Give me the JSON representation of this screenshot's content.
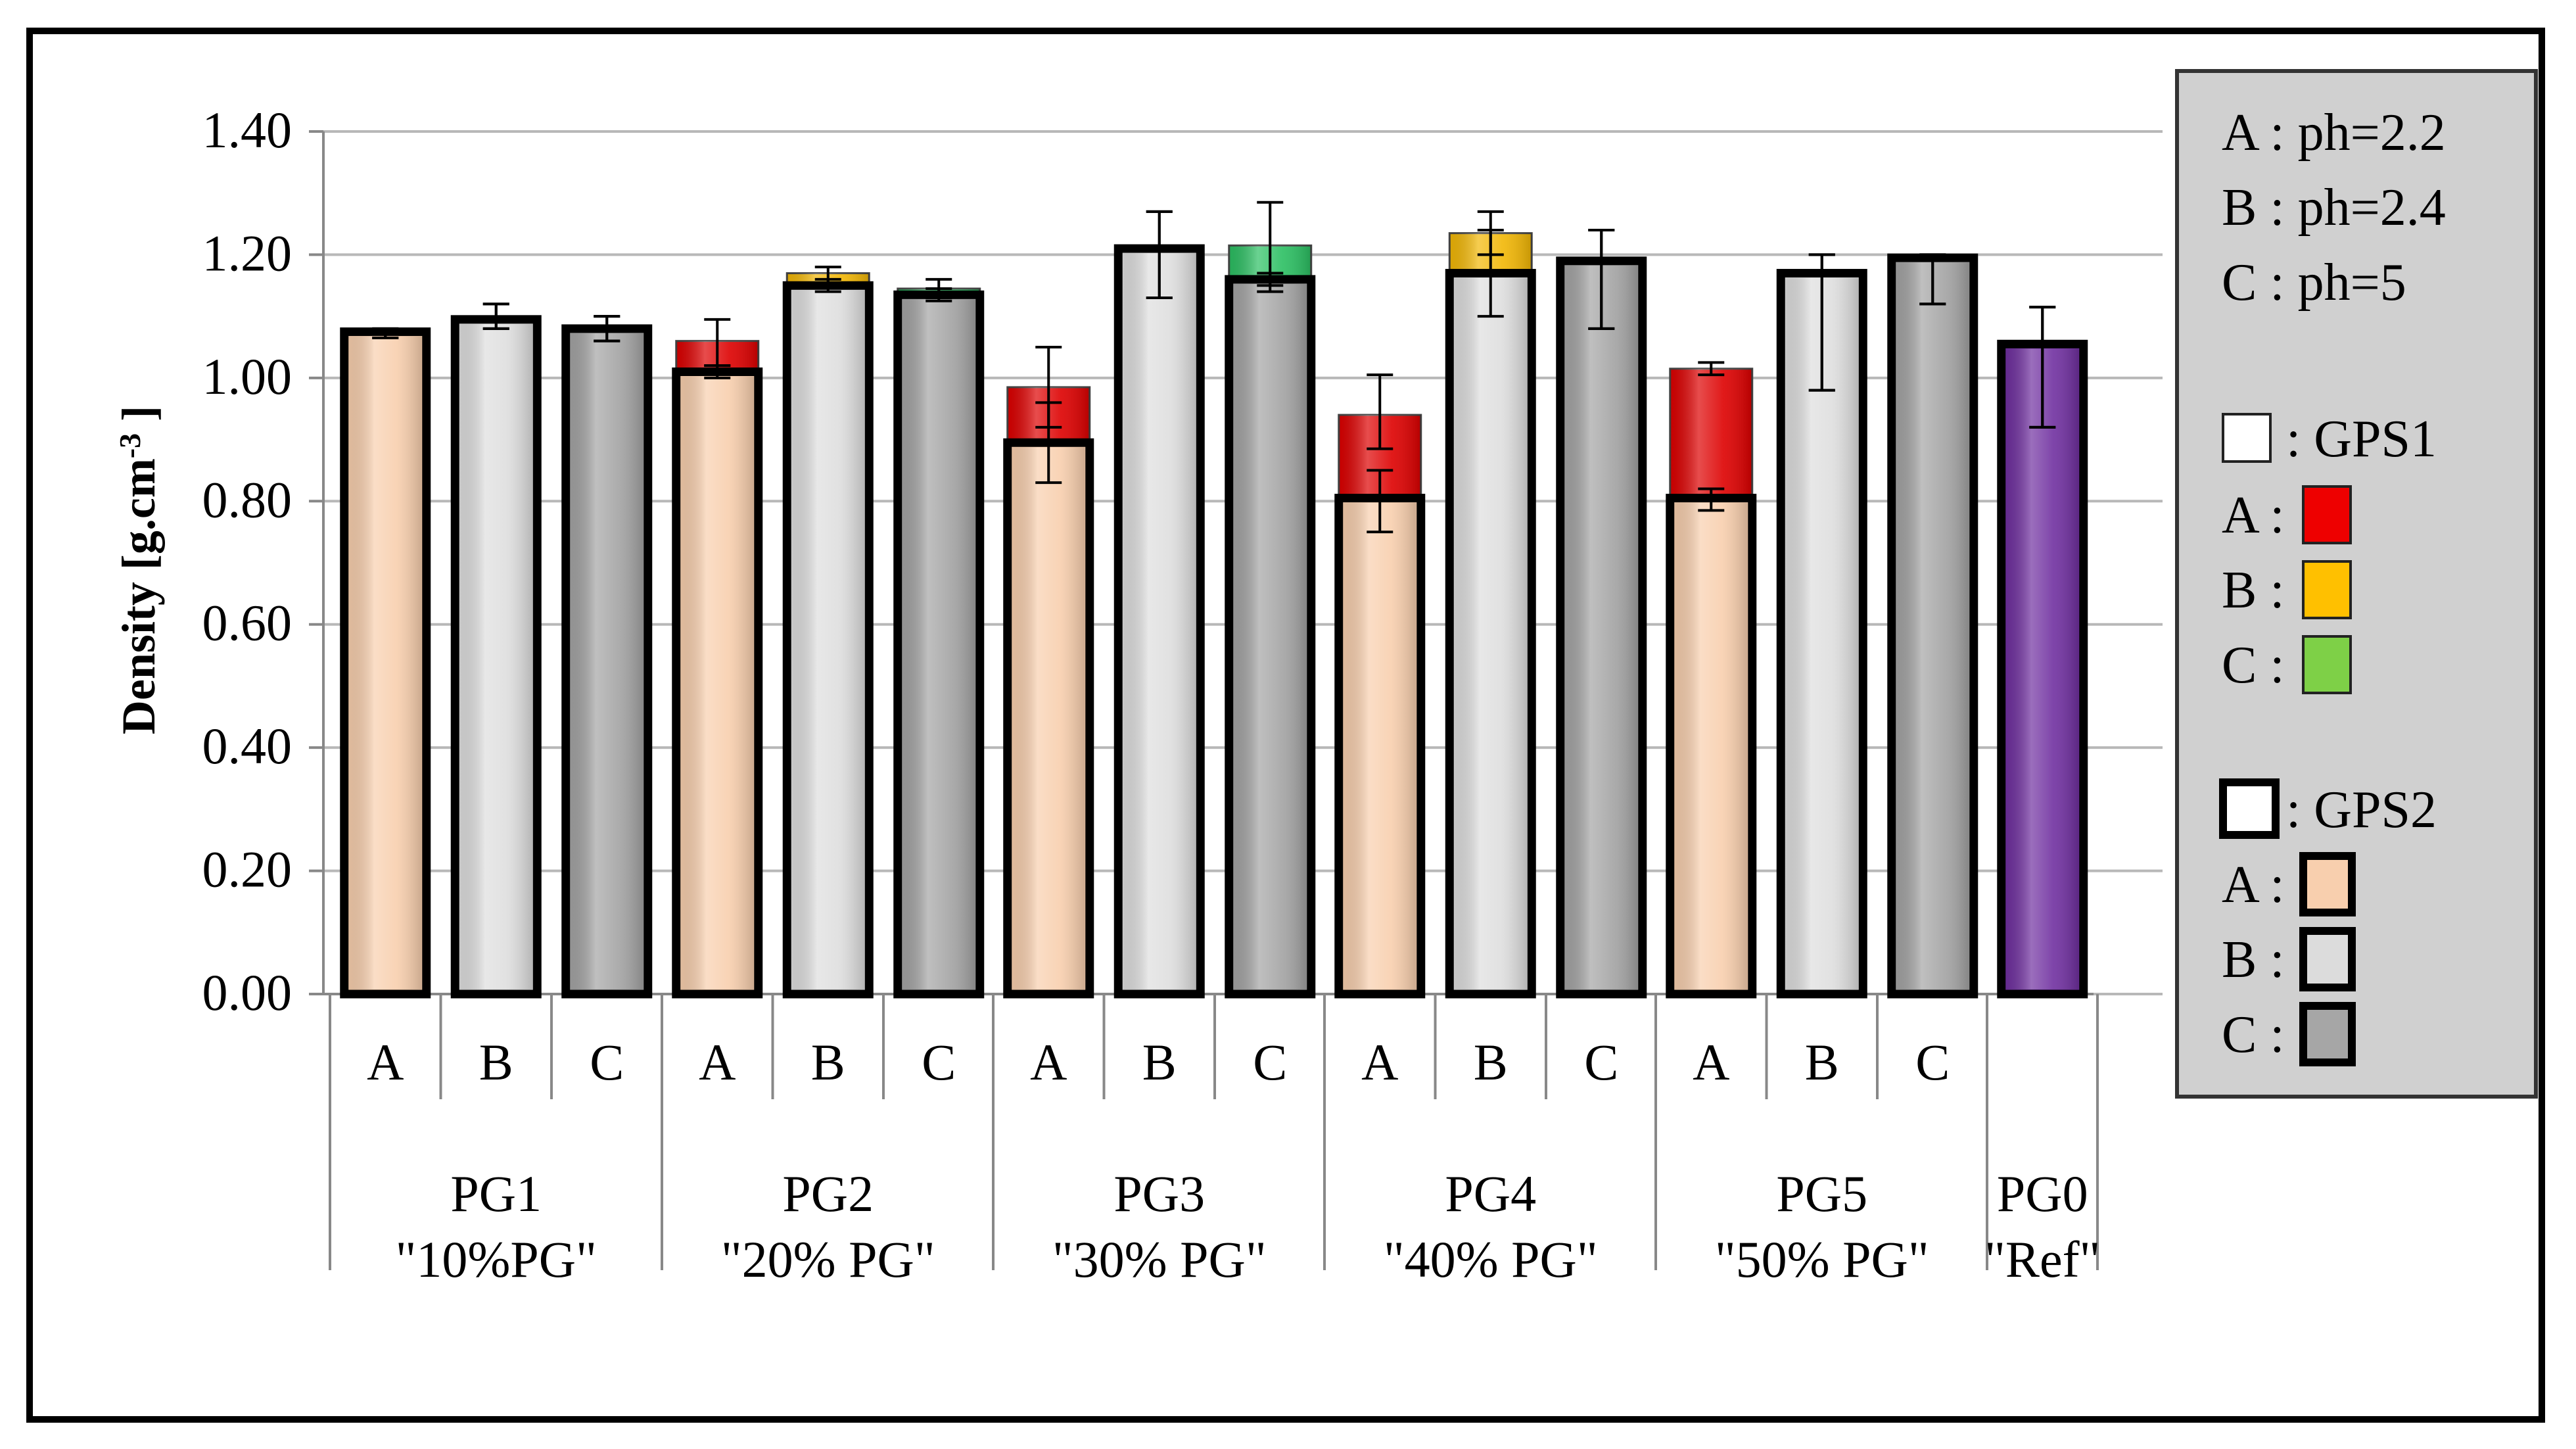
{
  "chart_data": {
    "type": "bar",
    "title": "",
    "ylabel": "Density [g.cm-3 ]",
    "ylabel_main": "Density [g.cm",
    "ylabel_sup": "-3",
    "ylabel_end": " ]",
    "ylim": [
      0,
      1.4
    ],
    "yticks": [
      "0.00",
      "0.20",
      "0.40",
      "0.60",
      "0.80",
      "1.00",
      "1.20",
      "1.40"
    ],
    "grid": true,
    "groups": [
      {
        "line1": "PG1",
        "line2": "\"10%PG\"",
        "bars": [
          {
            "label": "A",
            "gps1": 1.075,
            "gps2": 1.075,
            "err1": [
              1.065,
              1.08
            ],
            "err2": [
              1.065,
              1.08
            ]
          },
          {
            "label": "B",
            "gps1": 1.095,
            "gps2": 1.095,
            "err1": [
              1.08,
              1.12
            ],
            "err2": [
              1.08,
              1.12
            ]
          },
          {
            "label": "C",
            "gps1": 1.08,
            "gps2": 1.08,
            "err1": [
              1.06,
              1.1
            ],
            "err2": [
              1.06,
              1.1
            ]
          }
        ]
      },
      {
        "line1": "PG2",
        "line2": "\"20% PG\"",
        "bars": [
          {
            "label": "A",
            "gps1": 1.06,
            "gps2": 1.01,
            "err1": [
              1.02,
              1.095
            ],
            "err2": [
              1.0,
              1.02
            ]
          },
          {
            "label": "B",
            "gps1": 1.17,
            "gps2": 1.15,
            "err1": [
              1.15,
              1.18
            ],
            "err2": [
              1.14,
              1.16
            ]
          },
          {
            "label": "C",
            "gps1": 1.145,
            "gps2": 1.135,
            "err1": [
              1.13,
              1.16
            ],
            "err2": [
              1.125,
              1.145
            ]
          }
        ]
      },
      {
        "line1": "PG3",
        "line2": "\"30% PG\"",
        "bars": [
          {
            "label": "A",
            "gps1": 0.985,
            "gps2": 0.895,
            "err1": [
              0.92,
              1.05
            ],
            "err2": [
              0.83,
              0.96
            ]
          },
          {
            "label": "B",
            "gps1": 1.21,
            "gps2": 1.21,
            "err1": [
              1.13,
              1.27
            ],
            "err2": [
              1.13,
              1.27
            ]
          },
          {
            "label": "C",
            "gps1": 1.215,
            "gps2": 1.16,
            "err1": [
              1.14,
              1.285
            ],
            "err2": [
              1.15,
              1.17
            ]
          }
        ]
      },
      {
        "line1": "PG4",
        "line2": "\"40% PG\"",
        "bars": [
          {
            "label": "A",
            "gps1": 0.94,
            "gps2": 0.805,
            "err1": [
              0.885,
              1.005
            ],
            "err2": [
              0.75,
              0.85
            ]
          },
          {
            "label": "B",
            "gps1": 1.235,
            "gps2": 1.17,
            "err1": [
              1.2,
              1.27
            ],
            "err2": [
              1.1,
              1.24
            ]
          },
          {
            "label": "C",
            "gps1": 1.19,
            "gps2": 1.19,
            "err1": [
              1.08,
              1.24
            ],
            "err2": [
              1.08,
              1.24
            ]
          }
        ]
      },
      {
        "line1": "PG5",
        "line2": "\"50% PG\"",
        "bars": [
          {
            "label": "A",
            "gps1": 1.015,
            "gps2": 0.805,
            "err1": [
              1.005,
              1.025
            ],
            "err2": [
              0.785,
              0.82
            ]
          },
          {
            "label": "B",
            "gps1": 1.17,
            "gps2": 1.17,
            "err1": [
              0.98,
              1.2
            ],
            "err2": [
              0.98,
              1.2
            ]
          },
          {
            "label": "C",
            "gps1": 1.195,
            "gps2": 1.195,
            "err1": [
              1.12,
              1.2
            ],
            "err2": [
              1.12,
              1.2
            ]
          }
        ]
      },
      {
        "line1": "PG0",
        "line2": "\"Ref\"",
        "bars": [
          {
            "label": "",
            "gps1": 1.055,
            "gps2": 1.055,
            "err1": [
              0.92,
              1.115
            ],
            "err2": [
              0.92,
              1.115
            ]
          }
        ]
      }
    ],
    "colors": {
      "gps1": {
        "A": "#dd0000",
        "B": "#f2b705",
        "C": "#2bbf62"
      },
      "gps2": {
        "A": "#f8cfae",
        "B": "#dedede",
        "C": "#a4a4a4"
      },
      "ref": "#7030a0",
      "legend_gps1": {
        "A": "#ee0000",
        "B": "#ffc000",
        "C": "#7ed047"
      },
      "legend_gps2": {
        "A": "#f8cfae",
        "B": "#dcdcdc",
        "C": "#a6a6a6"
      },
      "legend_bg": "#d0d0d0",
      "grid": "#b8b8b8"
    },
    "legend": {
      "ph_lines": [
        "A : ph=2.2",
        "B : ph=2.4",
        "C : ph=5"
      ],
      "gps1_title": ": GPS1",
      "gps2_title": ": GPS2",
      "items": [
        "A :",
        "B :",
        "C :"
      ]
    }
  }
}
